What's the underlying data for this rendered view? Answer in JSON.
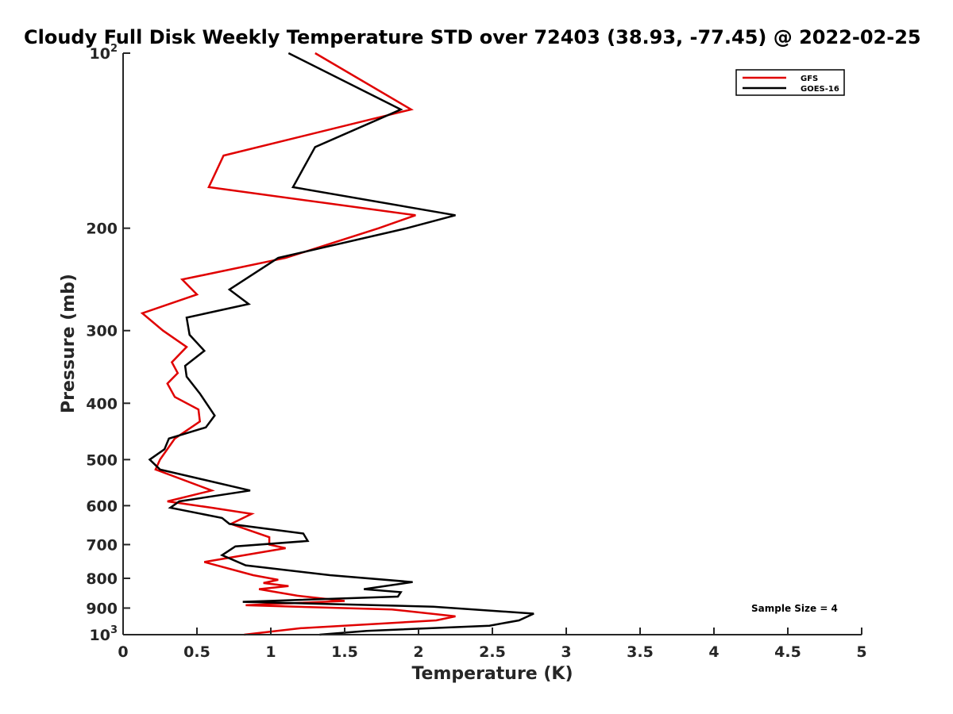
{
  "chart_data": {
    "type": "line",
    "title": "Cloudy Full Disk Weekly Temperature STD over 72403 (38.93, -77.45) @ 2022-02-25",
    "xlabel": "Temperature (K)",
    "ylabel": "Pressure (mb)",
    "xlim": [
      0,
      5
    ],
    "ylim": [
      100,
      1000
    ],
    "y_scale": "log",
    "y_reversed": true,
    "grid": false,
    "legend_position": "top-right",
    "x_ticks": [
      {
        "value": 0,
        "label": "0"
      },
      {
        "value": 0.5,
        "label": "0.5"
      },
      {
        "value": 1,
        "label": "1"
      },
      {
        "value": 1.5,
        "label": "1.5"
      },
      {
        "value": 2,
        "label": "2"
      },
      {
        "value": 2.5,
        "label": "2.5"
      },
      {
        "value": 3,
        "label": "3"
      },
      {
        "value": 3.5,
        "label": "3.5"
      },
      {
        "value": 4,
        "label": "4"
      },
      {
        "value": 4.5,
        "label": "4.5"
      },
      {
        "value": 5,
        "label": "5"
      }
    ],
    "y_ticks": [
      {
        "value": 100,
        "base": "10",
        "exp": "2"
      },
      {
        "value": 200,
        "base": "200",
        "exp": ""
      },
      {
        "value": 300,
        "base": "300",
        "exp": ""
      },
      {
        "value": 400,
        "base": "400",
        "exp": ""
      },
      {
        "value": 500,
        "base": "500",
        "exp": ""
      },
      {
        "value": 600,
        "base": "600",
        "exp": ""
      },
      {
        "value": 700,
        "base": "700",
        "exp": ""
      },
      {
        "value": 800,
        "base": "800",
        "exp": ""
      },
      {
        "value": 900,
        "base": "900",
        "exp": ""
      },
      {
        "value": 1000,
        "base": "10",
        "exp": "3"
      }
    ],
    "series": [
      {
        "name": "GFS",
        "color": "#e00000",
        "points": [
          [
            1.3,
            100
          ],
          [
            1.95,
            125
          ],
          [
            0.68,
            150
          ],
          [
            0.58,
            170
          ],
          [
            1.98,
            190
          ],
          [
            1.73,
            200
          ],
          [
            1.1,
            225
          ],
          [
            0.4,
            245
          ],
          [
            0.5,
            260
          ],
          [
            0.13,
            280
          ],
          [
            0.27,
            300
          ],
          [
            0.43,
            320
          ],
          [
            0.33,
            340
          ],
          [
            0.37,
            355
          ],
          [
            0.3,
            370
          ],
          [
            0.35,
            390
          ],
          [
            0.51,
            410
          ],
          [
            0.52,
            430
          ],
          [
            0.35,
            460
          ],
          [
            0.25,
            500
          ],
          [
            0.22,
            520
          ],
          [
            0.6,
            565
          ],
          [
            0.3,
            590
          ],
          [
            0.6,
            605
          ],
          [
            0.87,
            620
          ],
          [
            0.73,
            645
          ],
          [
            0.99,
            680
          ],
          [
            0.99,
            700
          ],
          [
            1.1,
            710
          ],
          [
            0.55,
            750
          ],
          [
            0.88,
            790
          ],
          [
            1.05,
            805
          ],
          [
            0.95,
            815
          ],
          [
            1.12,
            825
          ],
          [
            0.92,
            835
          ],
          [
            1.18,
            857
          ],
          [
            1.5,
            875
          ],
          [
            0.83,
            890
          ],
          [
            1.82,
            905
          ],
          [
            2.25,
            930
          ],
          [
            2.12,
            945
          ],
          [
            1.2,
            975
          ],
          [
            0.82,
            1000
          ]
        ]
      },
      {
        "name": "GOES-16",
        "color": "#000000",
        "points": [
          [
            1.12,
            100
          ],
          [
            1.88,
            125
          ],
          [
            1.3,
            145
          ],
          [
            1.15,
            170
          ],
          [
            2.25,
            190
          ],
          [
            1.92,
            200
          ],
          [
            1.05,
            225
          ],
          [
            0.72,
            255
          ],
          [
            0.85,
            270
          ],
          [
            0.43,
            285
          ],
          [
            0.45,
            305
          ],
          [
            0.55,
            325
          ],
          [
            0.42,
            345
          ],
          [
            0.43,
            360
          ],
          [
            0.52,
            385
          ],
          [
            0.62,
            420
          ],
          [
            0.56,
            440
          ],
          [
            0.31,
            460
          ],
          [
            0.28,
            480
          ],
          [
            0.18,
            500
          ],
          [
            0.25,
            520
          ],
          [
            0.86,
            565
          ],
          [
            0.38,
            590
          ],
          [
            0.32,
            605
          ],
          [
            0.67,
            630
          ],
          [
            0.72,
            645
          ],
          [
            1.22,
            670
          ],
          [
            1.25,
            690
          ],
          [
            0.76,
            705
          ],
          [
            0.67,
            730
          ],
          [
            0.83,
            760
          ],
          [
            1.4,
            790
          ],
          [
            1.96,
            812
          ],
          [
            1.63,
            835
          ],
          [
            1.88,
            845
          ],
          [
            1.86,
            860
          ],
          [
            0.81,
            878
          ],
          [
            2.1,
            895
          ],
          [
            2.78,
            920
          ],
          [
            2.68,
            945
          ],
          [
            2.48,
            965
          ],
          [
            1.65,
            985
          ],
          [
            1.33,
            1000
          ]
        ]
      }
    ],
    "annotations": [
      "Sample Size = 4"
    ]
  }
}
